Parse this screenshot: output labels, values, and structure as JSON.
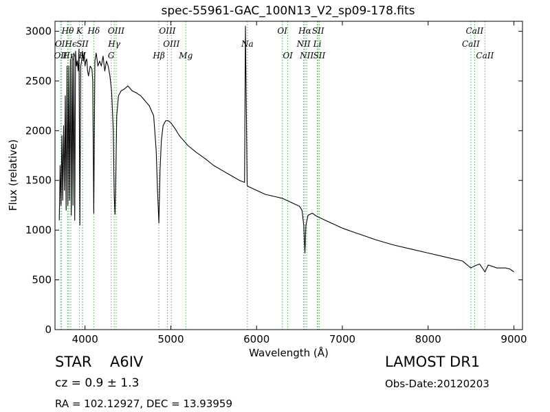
{
  "chart_data": {
    "type": "line",
    "title": "spec-55961-GAC_100N13_V2_sp09-178.fits",
    "xlabel": "Wavelength (Å)",
    "ylabel": "Flux (relative)",
    "xlim": [
      3650,
      9100
    ],
    "ylim": [
      0,
      3100
    ],
    "xticks": [
      4000,
      5000,
      6000,
      7000,
      8000,
      9000
    ],
    "yticks": [
      0,
      500,
      1000,
      1500,
      2000,
      2500,
      3000
    ],
    "grid": false,
    "series": [
      {
        "x": [
          3700,
          3710,
          3720,
          3730,
          3740,
          3750,
          3760,
          3770,
          3780,
          3790,
          3800,
          3810,
          3820,
          3830,
          3840,
          3850,
          3860,
          3870,
          3880,
          3890,
          3900,
          3910,
          3920,
          3930,
          3940,
          3950,
          3960,
          3970,
          3980,
          3990,
          4000,
          4010,
          4020,
          4030,
          4040,
          4060,
          4080,
          4090,
          4102,
          4115,
          4130,
          4150,
          4170,
          4190,
          4210,
          4230,
          4250,
          4270,
          4290,
          4310,
          4330,
          4340,
          4350,
          4360,
          4370,
          4390,
          4420,
          4460,
          4500,
          4550,
          4600,
          4650,
          4700,
          4750,
          4800,
          4830,
          4845,
          4861,
          4875,
          4890,
          4910,
          4940,
          4970,
          5000,
          5050,
          5100,
          5150,
          5200,
          5300,
          5400,
          5500,
          5600,
          5700,
          5800,
          5860,
          5870,
          5890,
          5900,
          6000,
          6100,
          6200,
          6300,
          6400,
          6500,
          6530,
          6550,
          6563,
          6575,
          6600,
          6650,
          6700,
          6800,
          6900,
          7000,
          7200,
          7400,
          7600,
          7800,
          8000,
          8200,
          8400,
          8498,
          8542,
          8600,
          8662,
          8700,
          8800,
          8900,
          8950,
          9000
        ],
        "y": [
          1100,
          1650,
          1250,
          1950,
          1300,
          2050,
          1400,
          2350,
          1200,
          2650,
          1250,
          2650,
          1300,
          2720,
          1150,
          2750,
          1250,
          2780,
          1100,
          2800,
          2650,
          2700,
          2600,
          2820,
          1050,
          2650,
          2700,
          2800,
          2700,
          2780,
          2650,
          2700,
          2720,
          2600,
          2550,
          2650,
          2620,
          2500,
          1170,
          2700,
          2780,
          2650,
          2700,
          2650,
          2750,
          2600,
          2700,
          2650,
          2550,
          2400,
          2000,
          1350,
          1160,
          1600,
          2150,
          2350,
          2400,
          2420,
          2450,
          2400,
          2380,
          2350,
          2300,
          2250,
          2150,
          1800,
          1400,
          1070,
          1600,
          1900,
          2050,
          2100,
          2100,
          2080,
          2020,
          1950,
          1900,
          1850,
          1780,
          1720,
          1650,
          1600,
          1550,
          1500,
          1480,
          3050,
          1450,
          1440,
          1400,
          1360,
          1340,
          1320,
          1280,
          1240,
          1200,
          1050,
          770,
          1050,
          1150,
          1170,
          1140,
          1100,
          1060,
          1020,
          960,
          900,
          850,
          810,
          770,
          730,
          690,
          620,
          640,
          660,
          580,
          650,
          620,
          620,
          610,
          580
        ]
      }
    ],
    "line_markers": [
      {
        "label": "Hθ",
        "x": 3798,
        "row": 0
      },
      {
        "label": "K",
        "x": 3934,
        "row": 0
      },
      {
        "label": "Hδ",
        "x": 4102,
        "row": 0
      },
      {
        "label": "OIII",
        "x": 4363,
        "row": 0
      },
      {
        "label": "OIII",
        "x": 4960,
        "row": 0
      },
      {
        "label": "OI",
        "x": 6300,
        "row": 0
      },
      {
        "label": "Hα",
        "x": 6563,
        "row": 0
      },
      {
        "label": "SII",
        "x": 6717,
        "row": 0
      },
      {
        "label": "CaII",
        "x": 8542,
        "row": 0
      },
      {
        "label": "OII",
        "x": 3727,
        "row": 1
      },
      {
        "label": "Hϵ",
        "x": 3835,
        "row": 1
      },
      {
        "label": "SII",
        "x": 3970,
        "row": 1
      },
      {
        "label": "Hγ",
        "x": 4340,
        "row": 1
      },
      {
        "label": "OIII",
        "x": 5007,
        "row": 1
      },
      {
        "label": "Na",
        "x": 5893,
        "row": 1
      },
      {
        "label": "NII",
        "x": 6548,
        "row": 1
      },
      {
        "label": "Li",
        "x": 6708,
        "row": 1
      },
      {
        "label": "CaII",
        "x": 8498,
        "row": 1
      },
      {
        "label": "OII",
        "x": 3715,
        "row": 2
      },
      {
        "label": "Hη",
        "x": 3811,
        "row": 2
      },
      {
        "label": "H",
        "x": 3969,
        "row": 2
      },
      {
        "label": "G",
        "x": 4305,
        "row": 2
      },
      {
        "label": "Hβ",
        "x": 4861,
        "row": 2
      },
      {
        "label": "Mg",
        "x": 5175,
        "row": 2
      },
      {
        "label": "OI",
        "x": 6364,
        "row": 2
      },
      {
        "label": "NII",
        "x": 6584,
        "row": 2
      },
      {
        "label": "SII",
        "x": 6731,
        "row": 2
      },
      {
        "label": "CaII",
        "x": 8662,
        "row": 2
      }
    ],
    "colors": {
      "spectrum": "#000000",
      "line_markers": "#4caf50"
    }
  },
  "info": {
    "object_class": "STAR",
    "subclass": "A6IV",
    "survey": "LAMOST DR1",
    "redshift": "cz = 0.9 ± 1.3",
    "obs_date": "Obs-Date:20120203",
    "coords": "RA = 102.12927, DEC = 13.93959"
  }
}
